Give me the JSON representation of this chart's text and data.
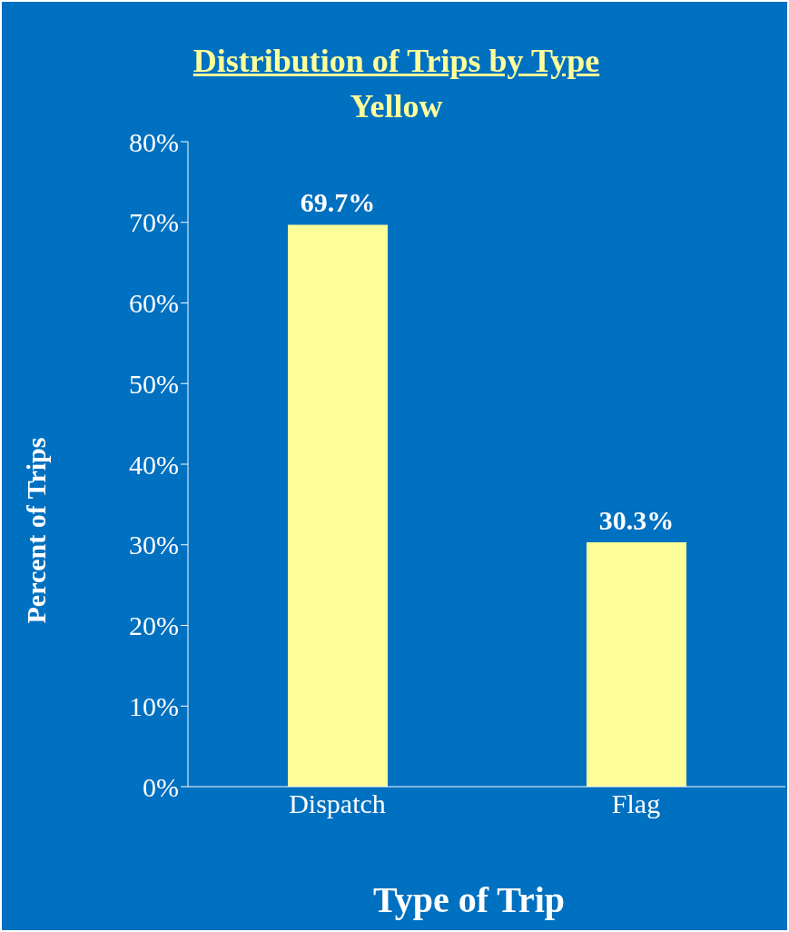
{
  "chart_data": {
    "type": "bar",
    "title": "Distribution of Trips by Type",
    "subtitle": "Yellow",
    "xlabel": "Type of Trip",
    "ylabel": "Percent of Trips",
    "categories": [
      "Dispatch",
      "Flag"
    ],
    "values": [
      69.7,
      30.3
    ],
    "color": "#ffff99",
    "value_labels": [
      "69.7%",
      "30.3%"
    ],
    "ylim": [
      0,
      80
    ],
    "yticks": [
      {
        "value": 0,
        "label": "0%"
      },
      {
        "value": 10,
        "label": "10%"
      },
      {
        "value": 20,
        "label": "20%"
      },
      {
        "value": 30,
        "label": "30%"
      },
      {
        "value": 40,
        "label": "40%"
      },
      {
        "value": 50,
        "label": "50%"
      },
      {
        "value": 60,
        "label": "60%"
      },
      {
        "value": 70,
        "label": "70%"
      },
      {
        "value": 80,
        "label": "80%"
      }
    ]
  }
}
